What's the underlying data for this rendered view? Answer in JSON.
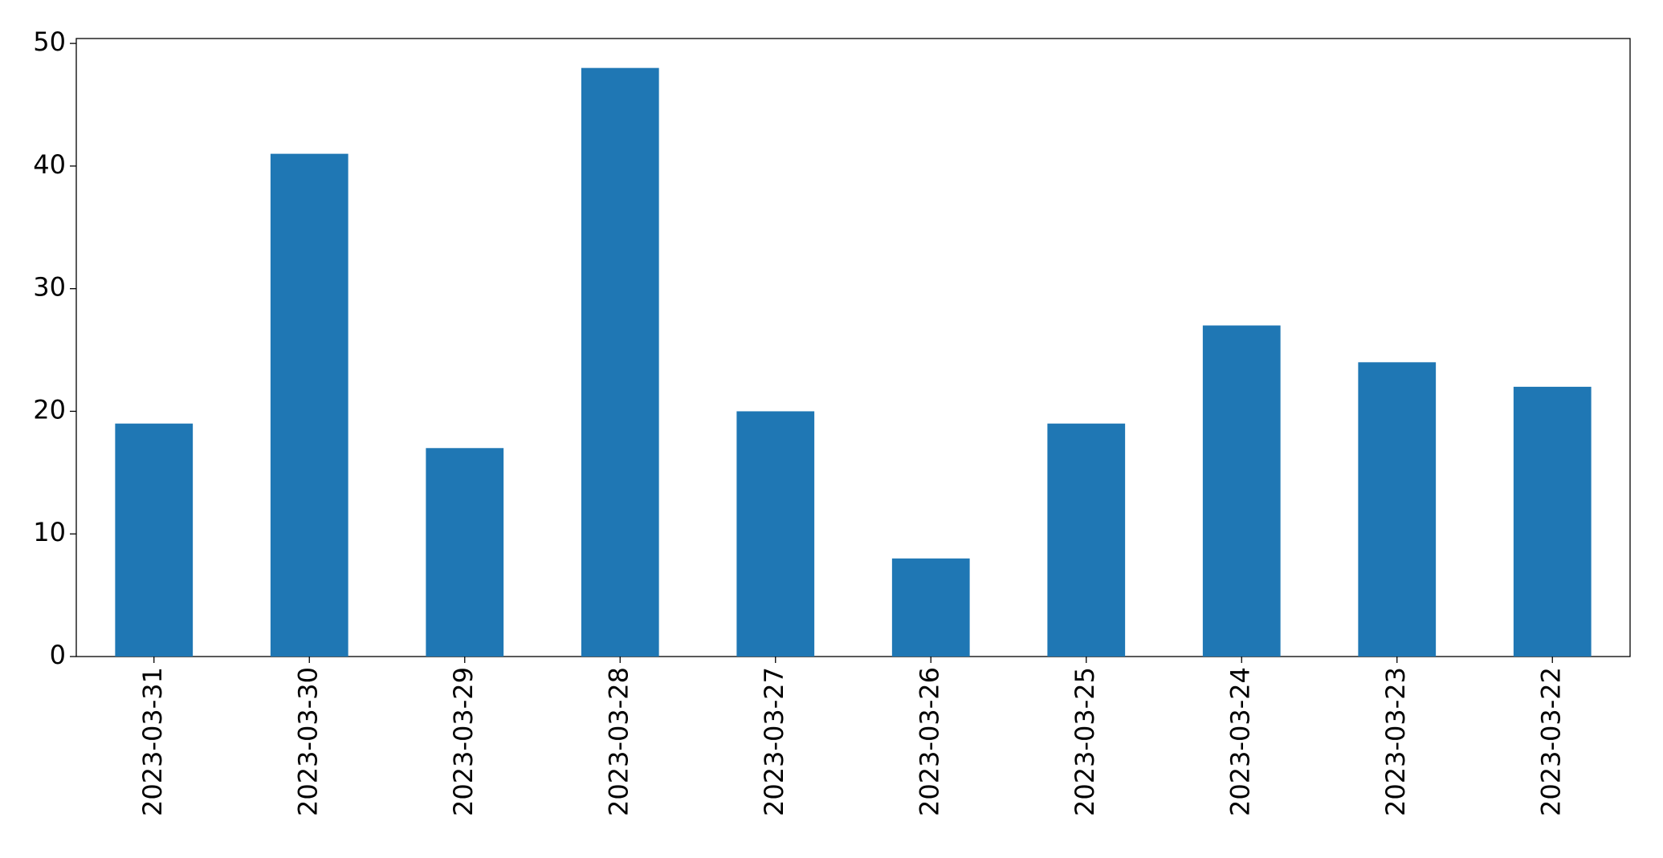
{
  "chart_data": {
    "type": "bar",
    "categories": [
      "2023-03-31",
      "2023-03-30",
      "2023-03-29",
      "2023-03-28",
      "2023-03-27",
      "2023-03-26",
      "2023-03-25",
      "2023-03-24",
      "2023-03-23",
      "2023-03-22"
    ],
    "values": [
      19,
      41,
      17,
      48,
      20,
      8,
      19,
      27,
      24,
      22
    ],
    "color": "#1f77b4",
    "ylim": [
      0,
      50.4
    ],
    "yticks": [
      0,
      10,
      20,
      30,
      40,
      50
    ],
    "grid": false
  }
}
